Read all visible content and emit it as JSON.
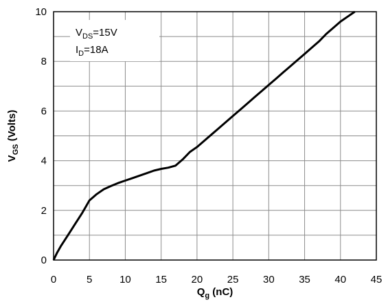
{
  "chart_data": {
    "type": "line",
    "xlabel": {
      "main": "Q",
      "sub": "g",
      "rest": " (nC)"
    },
    "ylabel": {
      "main": "V",
      "sub": "GS",
      "rest": " (Volts)"
    },
    "xlim": [
      0,
      45
    ],
    "ylim": [
      0,
      10
    ],
    "xticks": [
      "0",
      "5",
      "10",
      "15",
      "20",
      "25",
      "30",
      "35",
      "40",
      "45"
    ],
    "yticks": [
      "0",
      "2",
      "4",
      "6",
      "8",
      "10"
    ],
    "grid": true,
    "annotations": [
      {
        "main": "V",
        "sub": "DS",
        "rest": "=15V"
      },
      {
        "main": "I",
        "sub": "D",
        "rest": "=18A"
      }
    ],
    "series": [
      {
        "color": "#000000",
        "x": [
          0,
          0.5,
          1,
          2,
          3,
          4,
          5,
          6,
          7,
          8,
          9,
          10,
          11,
          12,
          13,
          14,
          15,
          16,
          17,
          18,
          19,
          20,
          21,
          22,
          23,
          24,
          25,
          26,
          27,
          28,
          29,
          30,
          31,
          32,
          33,
          34,
          35,
          36,
          37,
          38,
          39,
          40,
          41,
          42
        ],
        "y": [
          0,
          0.3,
          0.55,
          1.0,
          1.45,
          1.9,
          2.4,
          2.65,
          2.85,
          2.98,
          3.1,
          3.2,
          3.3,
          3.4,
          3.5,
          3.6,
          3.67,
          3.72,
          3.8,
          4.05,
          4.35,
          4.55,
          4.8,
          5.05,
          5.3,
          5.55,
          5.8,
          6.05,
          6.3,
          6.55,
          6.8,
          7.05,
          7.3,
          7.55,
          7.8,
          8.05,
          8.3,
          8.55,
          8.8,
          9.1,
          9.35,
          9.6,
          9.8,
          10.0
        ]
      }
    ]
  }
}
